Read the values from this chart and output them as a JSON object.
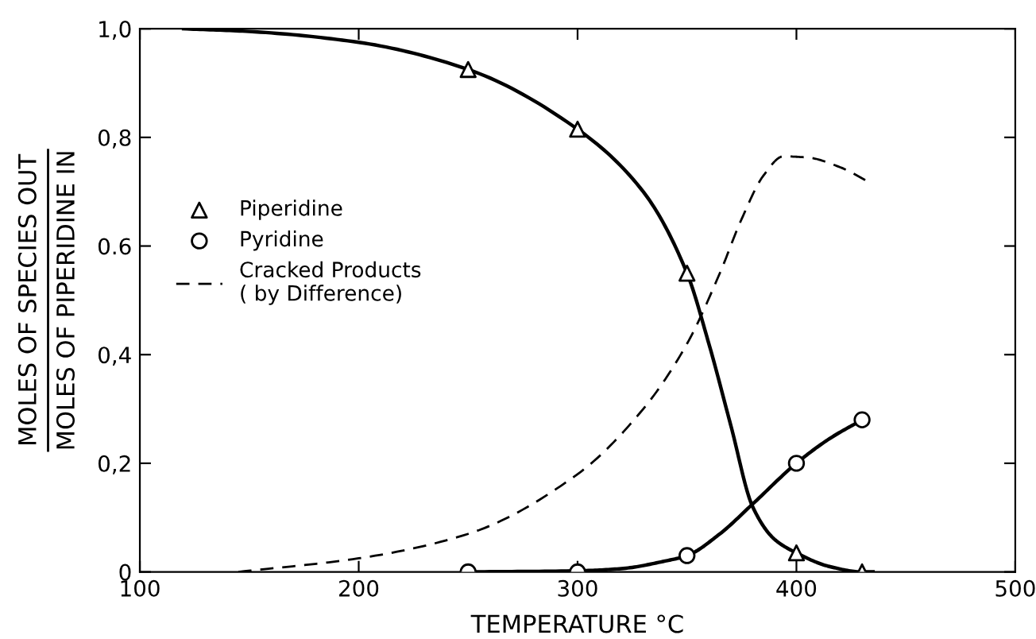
{
  "chart_data": {
    "type": "line",
    "xlabel": "TEMPERATURE °C",
    "ylabel": [
      "MOLES OF SPECIES OUT",
      "MOLES OF PIPERIDINE IN"
    ],
    "xlim": [
      100,
      500
    ],
    "xticks": [
      100,
      200,
      300,
      400,
      500
    ],
    "ylim": [
      0,
      1.0
    ],
    "yticks": [
      0,
      {
        "value": 0.2,
        "label": "0,2"
      },
      {
        "value": 0.4,
        "label": "0,4"
      },
      {
        "value": 0.6,
        "label": "0.6"
      },
      {
        "value": 0.8,
        "label": "0,8"
      },
      {
        "value": 1.0,
        "label": "1,0"
      }
    ],
    "grid": false,
    "legend": "left",
    "series": [
      {
        "color": "#000000",
        "line_style": "solid",
        "x": [
          120,
          150,
          200,
          250,
          300,
          330,
          350,
          360,
          370,
          380,
          390,
          400,
          415,
          430,
          435
        ],
        "values": [
          1.0,
          0.995,
          0.975,
          0.925,
          0.815,
          0.7,
          0.55,
          0.42,
          0.27,
          0.12,
          0.06,
          0.035,
          0.01,
          0.0,
          0.0
        ]
      },
      {
        "type": "scatter",
        "name": "Piperidine",
        "color": "#000000",
        "marker": "triangle",
        "x": [
          250,
          300,
          350,
          400,
          430
        ],
        "values": [
          0.925,
          0.815,
          0.55,
          0.035,
          0.0
        ]
      },
      {
        "color": "#000000",
        "line_style": "solid",
        "x": [
          250,
          300,
          320,
          340,
          350,
          365,
          380,
          400,
          415,
          430
        ],
        "values": [
          0.0,
          0.002,
          0.006,
          0.02,
          0.03,
          0.07,
          0.125,
          0.2,
          0.245,
          0.28
        ]
      },
      {
        "type": "scatter",
        "name": "Pyridine",
        "color": "#000000",
        "marker": "circle",
        "x": [
          250,
          300,
          350,
          400,
          430
        ],
        "values": [
          0.0,
          0.0,
          0.03,
          0.2,
          0.28
        ]
      },
      {
        "name": "Cracked Products\n( by Difference)",
        "color": "#000000",
        "line_style": "dashed",
        "x": [
          145,
          200,
          250,
          300,
          330,
          350,
          365,
          375,
          385,
          394,
          405,
          420,
          433
        ],
        "values": [
          0.0,
          0.025,
          0.07,
          0.18,
          0.3,
          0.42,
          0.55,
          0.65,
          0.73,
          0.765,
          0.763,
          0.745,
          0.718
        ]
      }
    ]
  }
}
